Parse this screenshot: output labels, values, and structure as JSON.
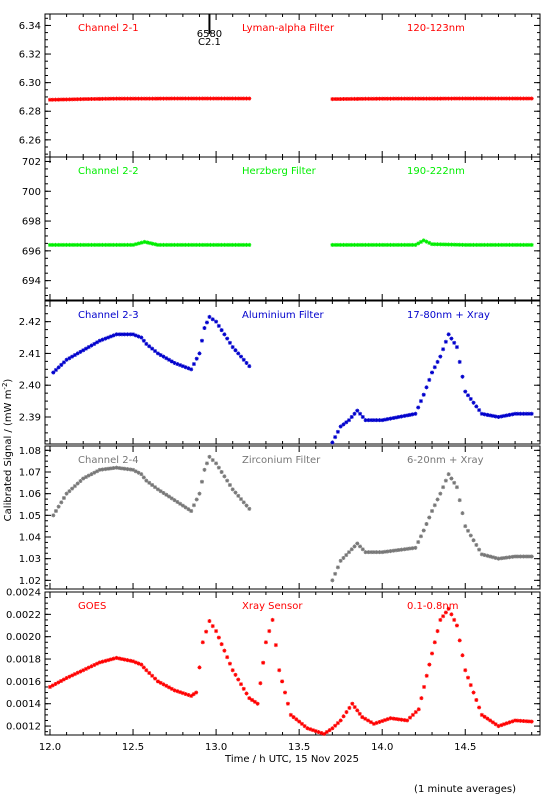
{
  "footer_note": "(1 minute averages)",
  "x_axis": {
    "label": "Time / h UTC, 15 Nov 2025",
    "range": [
      11.97,
      14.95
    ],
    "ticks": [
      "12.0",
      "12.5",
      "13.0",
      "13.5",
      "14.0",
      "14.5"
    ],
    "tick_values": [
      12.0,
      12.5,
      13.0,
      13.5,
      14.0,
      14.5
    ]
  },
  "y_axis": {
    "label": "Calibrated Signal / (mW m",
    "label_sup": "-2",
    "label_end": ")"
  },
  "marker": {
    "label_top": "6580",
    "label_bottom": "C2.1",
    "x": 12.96
  },
  "chart_data": [
    {
      "type": "scatter",
      "channel": "Channel 2-1",
      "filter": "Lyman-alpha Filter",
      "band": "120-123nm",
      "color": "#ff0000",
      "ylim": [
        6.248,
        6.348
      ],
      "yticks": [
        6.26,
        6.28,
        6.3,
        6.32,
        6.34
      ],
      "ytick_labels": [
        "6.26",
        "6.28",
        "6.30",
        "6.32",
        "6.34"
      ],
      "x": [
        12.0,
        12.2,
        12.4,
        12.6,
        12.8,
        13.0,
        13.2,
        13.7,
        13.9,
        14.1,
        14.3,
        14.5,
        14.7,
        14.9
      ],
      "y": [
        6.288,
        6.2885,
        6.2888,
        6.2888,
        6.2889,
        6.2889,
        6.2889,
        6.2885,
        6.2887,
        6.2888,
        6.2888,
        6.2889,
        6.2889,
        6.2889
      ]
    },
    {
      "type": "scatter",
      "channel": "Channel 2-2",
      "filter": "Herzberg Filter",
      "band": "190-222nm",
      "color": "#00ee00",
      "ylim": [
        692.7,
        702.3
      ],
      "yticks": [
        694,
        696,
        698,
        700,
        702
      ],
      "ytick_labels": [
        "694",
        "696",
        "698",
        "700",
        "702"
      ],
      "x": [
        12.0,
        12.2,
        12.4,
        12.5,
        12.57,
        12.65,
        12.8,
        13.0,
        13.2,
        13.7,
        13.9,
        14.1,
        14.2,
        14.25,
        14.3,
        14.5,
        14.7,
        14.9
      ],
      "y": [
        696.4,
        696.4,
        696.4,
        696.4,
        696.6,
        696.4,
        696.4,
        696.4,
        696.4,
        696.4,
        696.4,
        696.4,
        696.4,
        696.7,
        696.45,
        696.4,
        696.4,
        696.4
      ]
    },
    {
      "type": "scatter",
      "channel": "Channel 2-3",
      "filter": "Aluminium Filter",
      "band": "17-80nm + Xray",
      "color": "#0000cc",
      "ylim": [
        2.3815,
        2.4265
      ],
      "yticks": [
        2.39,
        2.4,
        2.41,
        2.42
      ],
      "ytick_labels": [
        "2.39",
        "2.40",
        "2.41",
        "2.42"
      ],
      "x": [
        12.02,
        12.1,
        12.2,
        12.3,
        12.4,
        12.5,
        12.55,
        12.58,
        12.65,
        12.75,
        12.85,
        12.9,
        12.93,
        12.96,
        13.0,
        13.05,
        13.1,
        13.2,
        13.7,
        13.75,
        13.8,
        13.85,
        13.9,
        14.0,
        14.1,
        14.2,
        14.25,
        14.3,
        14.35,
        14.4,
        14.45,
        14.5,
        14.6,
        14.7,
        14.8,
        14.9
      ],
      "y": [
        2.404,
        2.408,
        2.411,
        2.414,
        2.416,
        2.416,
        2.415,
        2.413,
        2.41,
        2.407,
        2.405,
        2.41,
        2.418,
        2.4215,
        2.42,
        2.416,
        2.412,
        2.406,
        2.382,
        2.387,
        2.389,
        2.392,
        2.389,
        2.389,
        2.39,
        2.391,
        2.397,
        2.404,
        2.409,
        2.416,
        2.412,
        2.398,
        2.391,
        2.39,
        2.391,
        2.391
      ]
    },
    {
      "type": "scatter",
      "channel": "Channel 2-4",
      "filter": "Zirconium Filter",
      "band": "6-20nm + Xray",
      "color": "#777777",
      "ylim": [
        1.016,
        1.082
      ],
      "yticks": [
        1.02,
        1.03,
        1.04,
        1.05,
        1.06,
        1.07,
        1.08
      ],
      "ytick_labels": [
        "1.02",
        "1.03",
        "1.04",
        "1.05",
        "1.06",
        "1.07",
        "1.08"
      ],
      "x": [
        12.02,
        12.1,
        12.2,
        12.3,
        12.4,
        12.5,
        12.55,
        12.58,
        12.65,
        12.75,
        12.85,
        12.9,
        12.93,
        12.96,
        13.0,
        13.05,
        13.1,
        13.2,
        13.7,
        13.75,
        13.8,
        13.85,
        13.9,
        14.0,
        14.1,
        14.2,
        14.25,
        14.3,
        14.35,
        14.4,
        14.45,
        14.5,
        14.6,
        14.7,
        14.8,
        14.9
      ],
      "y": [
        1.05,
        1.06,
        1.067,
        1.071,
        1.072,
        1.071,
        1.069,
        1.066,
        1.062,
        1.057,
        1.052,
        1.06,
        1.071,
        1.077,
        1.074,
        1.068,
        1.062,
        1.053,
        1.02,
        1.029,
        1.033,
        1.037,
        1.033,
        1.033,
        1.034,
        1.035,
        1.043,
        1.052,
        1.06,
        1.069,
        1.063,
        1.045,
        1.032,
        1.03,
        1.031,
        1.031
      ]
    },
    {
      "type": "scatter",
      "channel": "GOES",
      "filter": "Xray Sensor",
      "band": "0.1-0.8nm",
      "color": "#ff0000",
      "ylim": [
        0.00112,
        0.0024
      ],
      "yticks": [
        0.0012,
        0.0014,
        0.0016,
        0.0018,
        0.002,
        0.0022,
        0.0024
      ],
      "ytick_labels": [
        "0.0012",
        "0.0014",
        "0.0016",
        "0.0018",
        "0.0020",
        "0.0022",
        "0.0024"
      ],
      "x": [
        12.0,
        12.1,
        12.2,
        12.3,
        12.4,
        12.5,
        12.55,
        12.58,
        12.65,
        12.75,
        12.85,
        12.88,
        12.92,
        12.96,
        13.0,
        13.1,
        13.2,
        13.25,
        13.3,
        13.34,
        13.38,
        13.45,
        13.55,
        13.65,
        13.7,
        13.75,
        13.82,
        13.88,
        13.95,
        14.05,
        14.15,
        14.22,
        14.3,
        14.35,
        14.4,
        14.45,
        14.5,
        14.6,
        14.7,
        14.8,
        14.9
      ],
      "y": [
        0.00155,
        0.00163,
        0.0017,
        0.00177,
        0.00181,
        0.00178,
        0.00175,
        0.0017,
        0.0016,
        0.00152,
        0.00147,
        0.0015,
        0.00195,
        0.00214,
        0.00205,
        0.0017,
        0.00145,
        0.0014,
        0.00195,
        0.00215,
        0.0017,
        0.0013,
        0.00118,
        0.00113,
        0.00118,
        0.00125,
        0.0014,
        0.00128,
        0.00122,
        0.00127,
        0.00125,
        0.00135,
        0.00185,
        0.00215,
        0.00225,
        0.0021,
        0.0017,
        0.0013,
        0.0012,
        0.00125,
        0.00124
      ]
    }
  ]
}
